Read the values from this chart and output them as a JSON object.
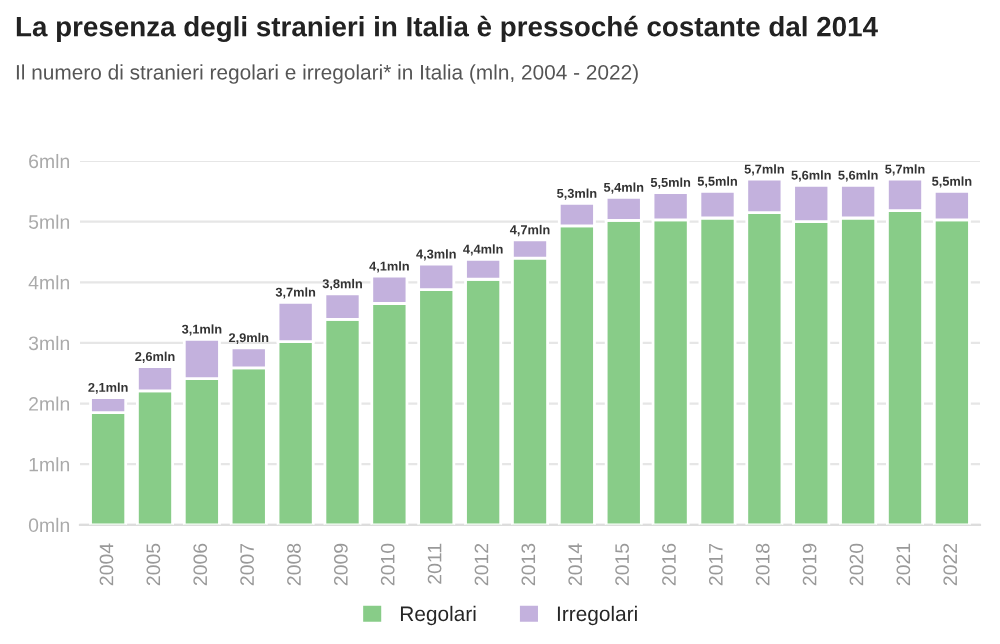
{
  "chart_data": {
    "type": "bar",
    "stacked": true,
    "title": "La presenza degli stranieri in Italia è pressoché costante dal 2014",
    "subtitle": "Il numero di stranieri regolari e irregolari* in Italia (mln, 2004 - 2022)",
    "categories": [
      "2004",
      "2005",
      "2006",
      "2007",
      "2008",
      "2009",
      "2010",
      "2011",
      "2012",
      "2013",
      "2014",
      "2015",
      "2016",
      "2017",
      "2018",
      "2019",
      "2020",
      "2021",
      "2022"
    ],
    "series": [
      {
        "name": "Regolari",
        "color": "#88cc88",
        "values": [
          1.85,
          2.21,
          2.41,
          2.59,
          3.02,
          3.39,
          3.65,
          3.88,
          4.05,
          4.4,
          4.93,
          5.02,
          5.03,
          5.06,
          5.15,
          5.0,
          5.06,
          5.18,
          5.03
        ]
      },
      {
        "name": "Irregolari",
        "color": "#c3b1dd",
        "values": [
          0.25,
          0.4,
          0.65,
          0.33,
          0.65,
          0.42,
          0.45,
          0.42,
          0.33,
          0.3,
          0.37,
          0.38,
          0.45,
          0.44,
          0.55,
          0.6,
          0.54,
          0.52,
          0.47
        ]
      }
    ],
    "totals": [
      "2,1mln",
      "2,6mln",
      "3,1mln",
      "2,9mln",
      "3,7mln",
      "3,8mln",
      "4,1mln",
      "4,3mln",
      "4,4mln",
      "4,7mln",
      "5,3mln",
      "5,4mln",
      "5,5mln",
      "5,5mln",
      "5,7mln",
      "5,6mln",
      "5,6mln",
      "5,7mln",
      "5,5mln"
    ],
    "ylim": [
      0,
      6
    ],
    "yticks": [
      {
        "value": 0,
        "label": "0mln"
      },
      {
        "value": 1,
        "label": "1mln"
      },
      {
        "value": 2,
        "label": "2mln"
      },
      {
        "value": 3,
        "label": "3mln"
      },
      {
        "value": 4,
        "label": "4mln"
      },
      {
        "value": 5,
        "label": "5mln"
      },
      {
        "value": 6,
        "label": "6mln"
      }
    ],
    "grid": "y",
    "legend": "bottom"
  }
}
